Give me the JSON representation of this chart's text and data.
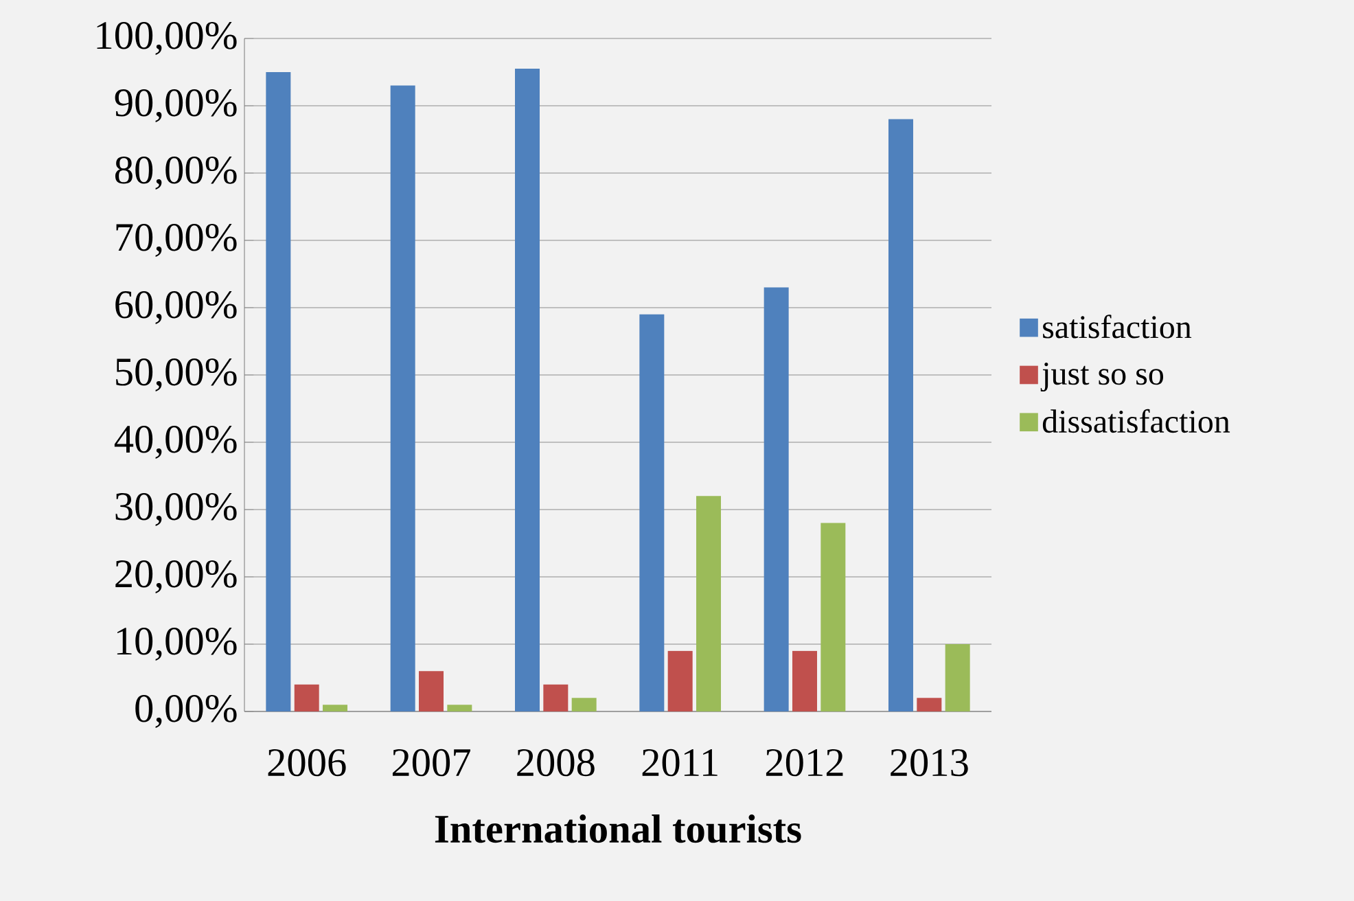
{
  "chart_data": {
    "type": "bar",
    "xlabel": "International tourists",
    "categories": [
      "2006",
      "2007",
      "2008",
      "2011",
      "2012",
      "2013"
    ],
    "series": [
      {
        "name": "satisfaction",
        "color": "#4f81bd",
        "values": [
          95,
          93,
          95.5,
          59,
          63,
          88
        ]
      },
      {
        "name": "just so so",
        "color": "#c0504d",
        "values": [
          4,
          6,
          4,
          9,
          9,
          2
        ]
      },
      {
        "name": "dissatisfaction",
        "color": "#9bbb59",
        "values": [
          1,
          1,
          2,
          32,
          28,
          10
        ]
      }
    ],
    "ylim": [
      0,
      100
    ],
    "yticks": [
      {
        "value": 0,
        "label": "0,00%"
      },
      {
        "value": 10,
        "label": "10,00%"
      },
      {
        "value": 20,
        "label": "20,00%"
      },
      {
        "value": 30,
        "label": "30,00%"
      },
      {
        "value": 40,
        "label": "40,00%"
      },
      {
        "value": 50,
        "label": "50,00%"
      },
      {
        "value": 60,
        "label": "60,00%"
      },
      {
        "value": 70,
        "label": "70,00%"
      },
      {
        "value": 80,
        "label": "80,00%"
      },
      {
        "value": 90,
        "label": "90,00%"
      },
      {
        "value": 100,
        "label": "100,00%"
      }
    ],
    "grid": "y",
    "legend": "right"
  }
}
